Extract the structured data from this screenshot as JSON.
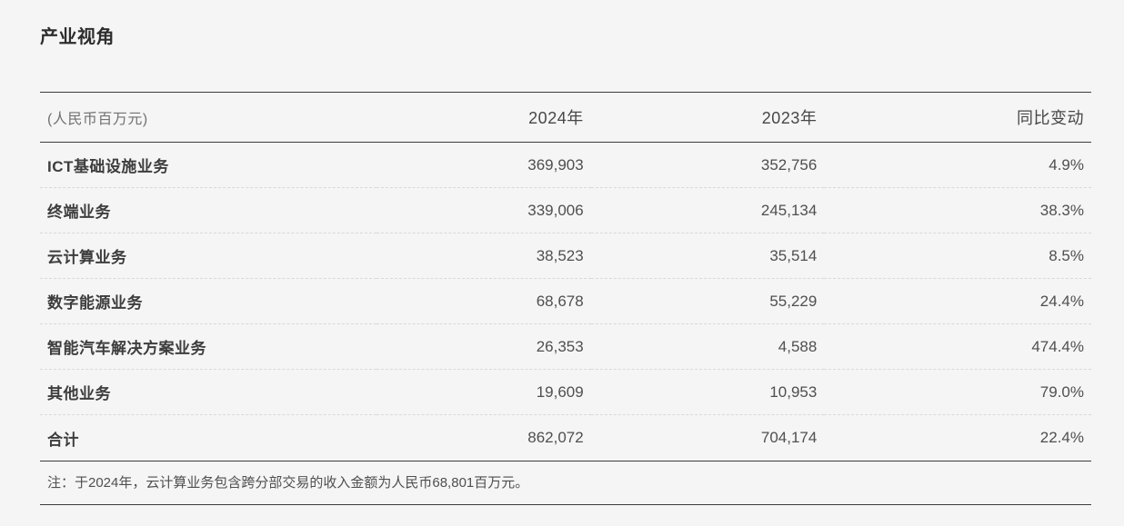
{
  "page": {
    "title": "产业视角",
    "background_color": "#f5f5f6",
    "rule_color": "#3c3c3c",
    "dashed_separator_color": "#d9d9d9"
  },
  "table": {
    "unit_label": "(人民币百万元)",
    "columns": {
      "year_current": "2024年",
      "year_prior": "2023年",
      "yoy": "同比变动"
    },
    "rows": [
      {
        "label": "ICT基础设施业务",
        "y2024": "369,903",
        "y2023": "352,756",
        "yoy": "4.9%"
      },
      {
        "label": "终端业务",
        "y2024": "339,006",
        "y2023": "245,134",
        "yoy": "38.3%"
      },
      {
        "label": "云计算业务",
        "y2024": "38,523",
        "y2023": "35,514",
        "yoy": "8.5%"
      },
      {
        "label": "数字能源业务",
        "y2024": "68,678",
        "y2023": "55,229",
        "yoy": "24.4%"
      },
      {
        "label": "智能汽车解决方案业务",
        "y2024": "26,353",
        "y2023": "4,588",
        "yoy": "474.4%"
      },
      {
        "label": "其他业务",
        "y2024": "19,609",
        "y2023": "10,953",
        "yoy": "79.0%"
      }
    ],
    "total": {
      "label": "合计",
      "y2024": "862,072",
      "y2023": "704,174",
      "yoy": "22.4%"
    }
  },
  "note": "注：于2024年，云计算业务包含跨分部交易的收入金额为人民币68,801百万元。"
}
